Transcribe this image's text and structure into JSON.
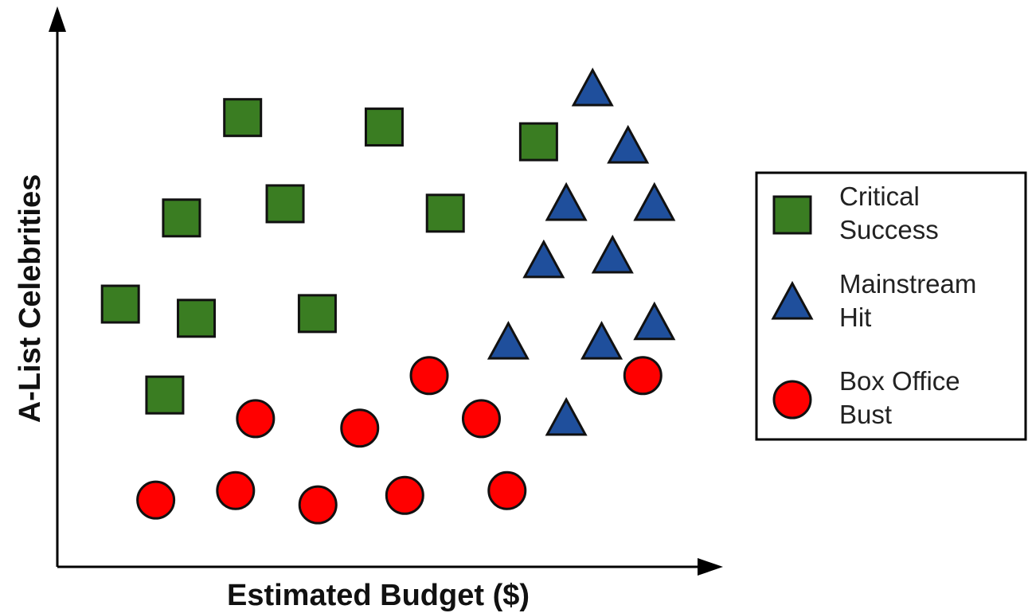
{
  "chart_data": {
    "type": "scatter",
    "xlabel": "Estimated Budget ($)",
    "ylabel": "A-List Celebrities",
    "xlim": [
      0,
      100
    ],
    "ylim": [
      0,
      100
    ],
    "axis_ticks": false,
    "grid": false,
    "legend_position": "right",
    "series": [
      {
        "name": "Critical Success",
        "marker": "square",
        "color": "#3a7d22",
        "points": [
          [
            28.8,
            85.5
          ],
          [
            50.8,
            83.7
          ],
          [
            74.8,
            80.9
          ],
          [
            19.3,
            66.4
          ],
          [
            35.4,
            69.1
          ],
          [
            60.3,
            67.3
          ],
          [
            9.8,
            50.0
          ],
          [
            21.6,
            47.3
          ],
          [
            40.4,
            48.2
          ],
          [
            16.7,
            32.7
          ]
        ]
      },
      {
        "name": "Mainstream Hit",
        "marker": "triangle",
        "color": "#1f4f9c",
        "points": [
          [
            83.2,
            90.9
          ],
          [
            88.7,
            80.0
          ],
          [
            79.1,
            69.1
          ],
          [
            92.8,
            69.1
          ],
          [
            75.6,
            58.2
          ],
          [
            86.3,
            59.1
          ],
          [
            92.8,
            46.4
          ],
          [
            70.1,
            42.7
          ],
          [
            84.6,
            42.7
          ],
          [
            79.1,
            28.2
          ]
        ]
      },
      {
        "name": "Box Office Bust",
        "marker": "circle",
        "color": "#ff0000",
        "points": [
          [
            57.8,
            36.4
          ],
          [
            91.0,
            36.4
          ],
          [
            30.8,
            28.2
          ],
          [
            47.0,
            26.4
          ],
          [
            65.9,
            28.2
          ],
          [
            15.3,
            12.7
          ],
          [
            27.7,
            14.5
          ],
          [
            40.5,
            11.8
          ],
          [
            54.0,
            13.6
          ],
          [
            69.9,
            14.5
          ]
        ]
      }
    ]
  }
}
